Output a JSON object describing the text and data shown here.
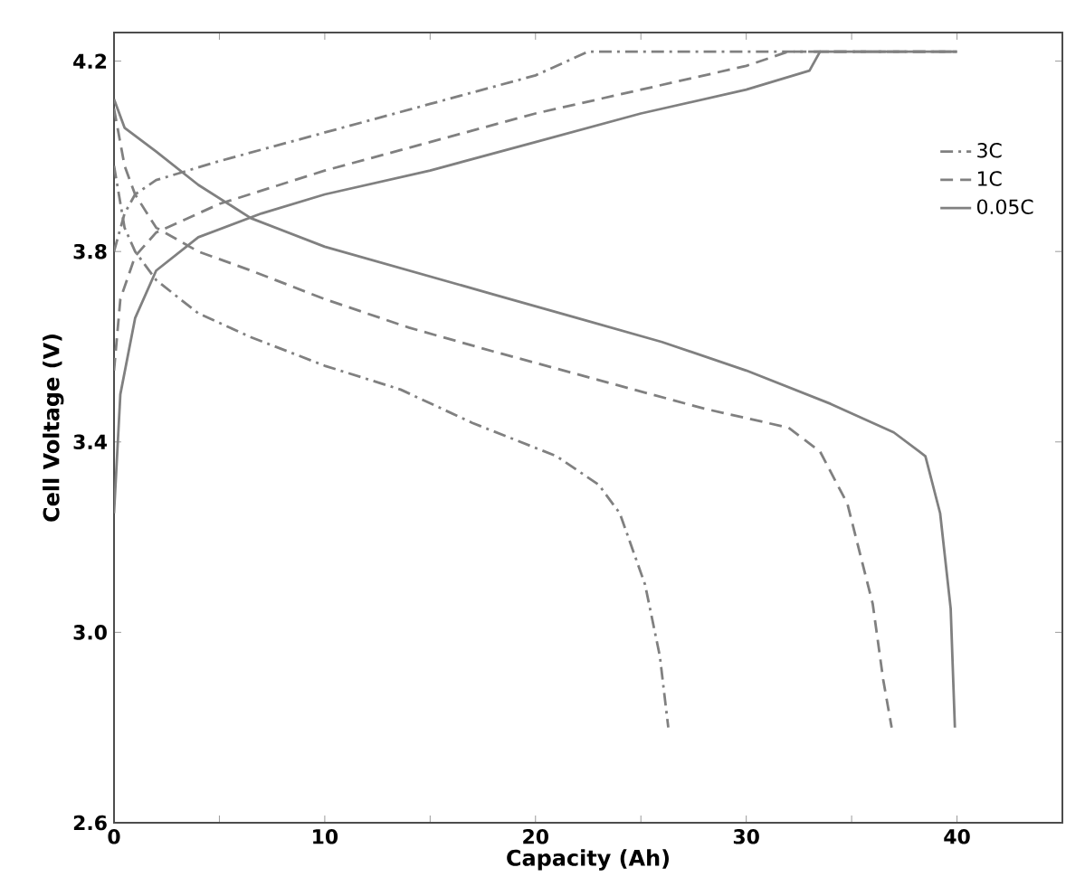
{
  "chart_data": {
    "type": "line",
    "xlabel": "Capacity (Ah)",
    "ylabel": "Cell Voltage (V)",
    "xlim": [
      0,
      45
    ],
    "ylim": [
      2.6,
      4.26
    ],
    "xticks": [
      0,
      {
        "value": 5,
        "label": null
      },
      10,
      {
        "value": 15,
        "label": null
      },
      20,
      {
        "value": 25,
        "label": null
      },
      30,
      {
        "value": 35,
        "label": null
      },
      40
    ],
    "yticks": [
      2.6,
      {
        "value": 3.0,
        "label": "3.0"
      },
      3.4,
      3.8,
      4.2
    ],
    "legend": "top right",
    "marker": "none",
    "series": [
      {
        "name": "3C",
        "color": "#808080",
        "line_style": "dashdot",
        "x": [
          0,
          0.5,
          1,
          2,
          5,
          10,
          15,
          20,
          22.5,
          40
        ],
        "values": [
          3.8,
          3.88,
          3.92,
          3.95,
          3.99,
          4.05,
          4.11,
          4.17,
          4.22,
          4.22
        ]
      },
      {
        "name": "1C",
        "color": "#808080",
        "line_style": "dashed",
        "x": [
          0,
          0.3,
          1,
          2,
          5,
          10,
          15,
          20,
          25,
          30,
          32,
          40
        ],
        "values": [
          3.55,
          3.7,
          3.79,
          3.84,
          3.9,
          3.97,
          4.03,
          4.09,
          4.14,
          4.19,
          4.22,
          4.22
        ]
      },
      {
        "name": "0.05C",
        "color": "#808080",
        "line_style": "solid",
        "x": [
          0,
          0.3,
          1,
          2,
          4,
          7,
          10,
          15,
          20,
          25,
          30,
          33,
          33.5,
          40
        ],
        "values": [
          3.25,
          3.5,
          3.66,
          3.76,
          3.83,
          3.88,
          3.92,
          3.97,
          4.03,
          4.09,
          4.14,
          4.18,
          4.22,
          4.22
        ]
      },
      {
        "color": "#808080",
        "line_style": "dashdot",
        "x": [
          0,
          0.5,
          1,
          2,
          4,
          6.5,
          10,
          13.6,
          17,
          21,
          23,
          24,
          25.2,
          25.9,
          26.3
        ],
        "values": [
          3.98,
          3.85,
          3.8,
          3.74,
          3.67,
          3.62,
          3.56,
          3.51,
          3.44,
          3.37,
          3.31,
          3.25,
          3.1,
          2.95,
          2.8
        ]
      },
      {
        "color": "#808080",
        "line_style": "dashed",
        "x": [
          0,
          0.5,
          1,
          2,
          4,
          6.5,
          10,
          14,
          18,
          23,
          28,
          32,
          33.5,
          34.8,
          36,
          36.5,
          36.9
        ],
        "values": [
          4.1,
          3.98,
          3.92,
          3.85,
          3.8,
          3.76,
          3.7,
          3.64,
          3.59,
          3.53,
          3.47,
          3.43,
          3.38,
          3.27,
          3.06,
          2.9,
          2.8
        ]
      },
      {
        "color": "#808080",
        "line_style": "solid",
        "x": [
          0,
          0.5,
          2,
          4,
          6.5,
          10,
          14,
          18,
          22,
          26,
          30,
          34,
          37,
          38.5,
          39.2,
          39.7,
          39.9
        ],
        "values": [
          4.12,
          4.06,
          4.01,
          3.94,
          3.87,
          3.81,
          3.76,
          3.71,
          3.66,
          3.61,
          3.55,
          3.48,
          3.42,
          3.37,
          3.25,
          3.05,
          2.8
        ]
      }
    ]
  }
}
